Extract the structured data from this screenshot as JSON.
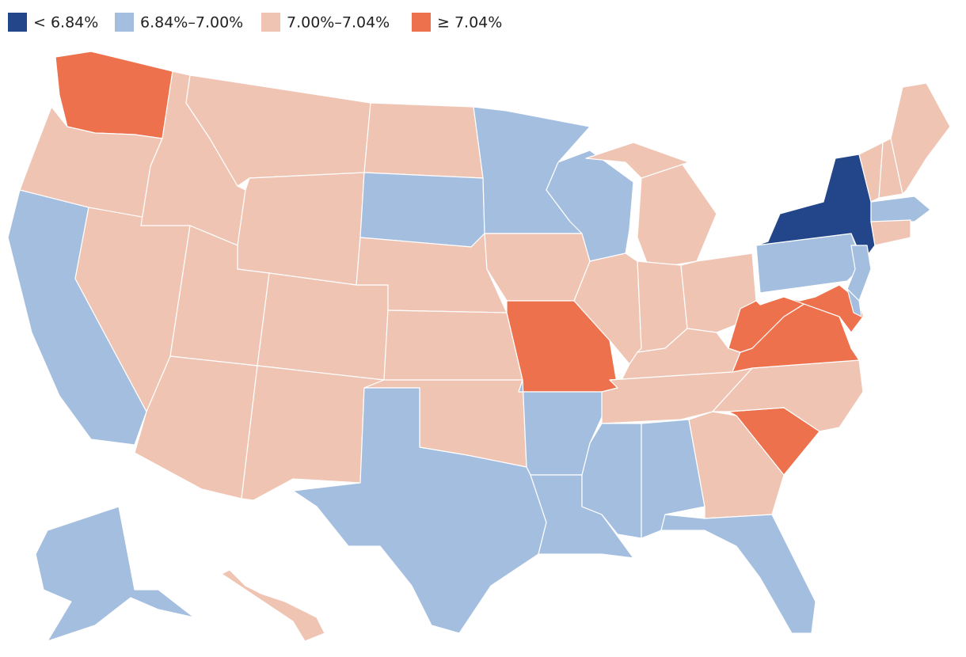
{
  "map": {
    "legend": [
      {
        "label": "< 6.84%",
        "color": "#23468a"
      },
      {
        "label": "6.84%–7.00%",
        "color": "#a3bedf"
      },
      {
        "label": "7.00%–7.04%",
        "color": "#f0c4b3"
      },
      {
        "label": "≥ 7.04%",
        "color": "#ec714c"
      }
    ],
    "regions": [
      3,
      2,
      1,
      2,
      2,
      2,
      2,
      2,
      2,
      2,
      2,
      2,
      1,
      2,
      2,
      2,
      1,
      1,
      2,
      3,
      1,
      1,
      1,
      2,
      2,
      2,
      2,
      2,
      2,
      2,
      1,
      1,
      2,
      1,
      3,
      2,
      3,
      3,
      1,
      0,
      2,
      2,
      2,
      1,
      2,
      1,
      3,
      1,
      1,
      2
    ]
  }
}
